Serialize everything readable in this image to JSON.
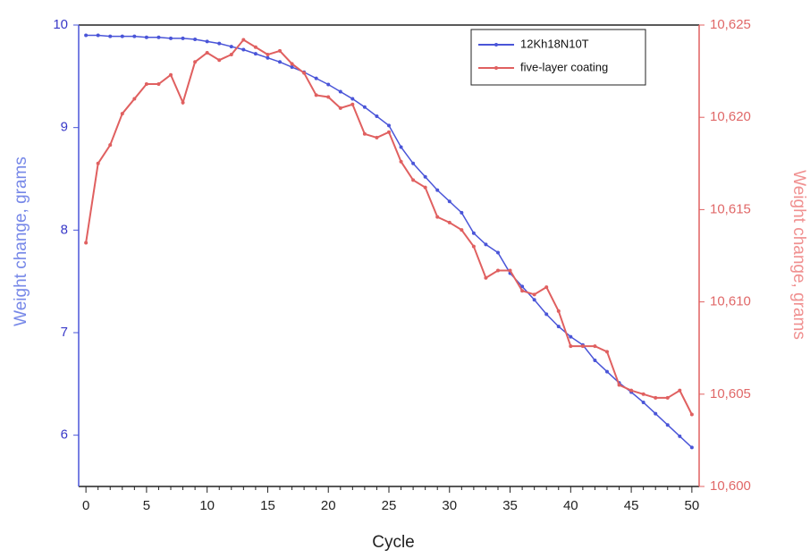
{
  "chart_data": {
    "type": "line",
    "xlabel": "Cycle",
    "ylabel": "Weight change, grams",
    "y2label": "Weight change, grams",
    "x": [
      0,
      1,
      2,
      3,
      4,
      5,
      6,
      7,
      8,
      9,
      10,
      11,
      12,
      13,
      14,
      15,
      16,
      17,
      18,
      19,
      20,
      21,
      22,
      23,
      24,
      25,
      26,
      27,
      28,
      29,
      30,
      31,
      32,
      33,
      34,
      35,
      36,
      37,
      38,
      39,
      40,
      41,
      42,
      43,
      44,
      45,
      46,
      47,
      48,
      49,
      50
    ],
    "series": [
      {
        "name": "12Kh18N10T",
        "color": "#4a55d8",
        "axis": "y",
        "values": [
          9.9,
          9.9,
          9.89,
          9.89,
          9.89,
          9.88,
          9.88,
          9.87,
          9.87,
          9.86,
          9.84,
          9.82,
          9.79,
          9.76,
          9.72,
          9.68,
          9.64,
          9.59,
          9.54,
          9.48,
          9.42,
          9.35,
          9.28,
          9.2,
          9.11,
          9.02,
          8.81,
          8.65,
          8.52,
          8.39,
          8.28,
          8.17,
          7.97,
          7.86,
          7.78,
          7.58,
          7.45,
          7.32,
          7.18,
          7.06,
          6.96,
          6.88,
          6.73,
          6.62,
          6.51,
          6.42,
          6.32,
          6.21,
          6.1,
          5.99,
          5.88
        ]
      },
      {
        "name": "five-layer coating",
        "color": "#e06060",
        "axis": "y2",
        "values": [
          10613.2,
          10617.5,
          10618.5,
          10620.2,
          10621.0,
          10621.8,
          10621.8,
          10622.3,
          10620.8,
          10623.0,
          10623.5,
          10623.1,
          10623.4,
          10624.2,
          10623.8,
          10623.4,
          10623.6,
          10622.9,
          10622.4,
          10621.2,
          10621.1,
          10620.5,
          10620.7,
          10619.1,
          10618.9,
          10619.2,
          10617.6,
          10616.6,
          10616.2,
          10614.6,
          10614.3,
          10613.9,
          10613.0,
          10611.3,
          10611.7,
          10611.7,
          10610.6,
          10610.4,
          10610.8,
          10609.5,
          10607.6,
          10607.6,
          10607.6,
          10607.3,
          10605.5,
          10605.2,
          10605.0,
          10604.8,
          10604.8,
          10605.2,
          10603.9
        ]
      }
    ],
    "xlim": [
      -0.6,
      50.6
    ],
    "xticks": [
      0,
      5,
      10,
      15,
      20,
      25,
      30,
      35,
      40,
      45,
      50
    ],
    "ylim": [
      5.5,
      10
    ],
    "yticks": [
      6,
      7,
      8,
      9,
      10
    ],
    "y2lim": [
      10600,
      10625
    ],
    "y2ticks": [
      {
        "value": 10600,
        "label": "10,600"
      },
      {
        "value": 10605,
        "label": "10,605"
      },
      {
        "value": 10610,
        "label": "10,610"
      },
      {
        "value": 10615,
        "label": "10,615"
      },
      {
        "value": 10620,
        "label": "10,620"
      },
      {
        "value": 10625,
        "label": "10,625"
      }
    ],
    "legend": "upper right"
  }
}
